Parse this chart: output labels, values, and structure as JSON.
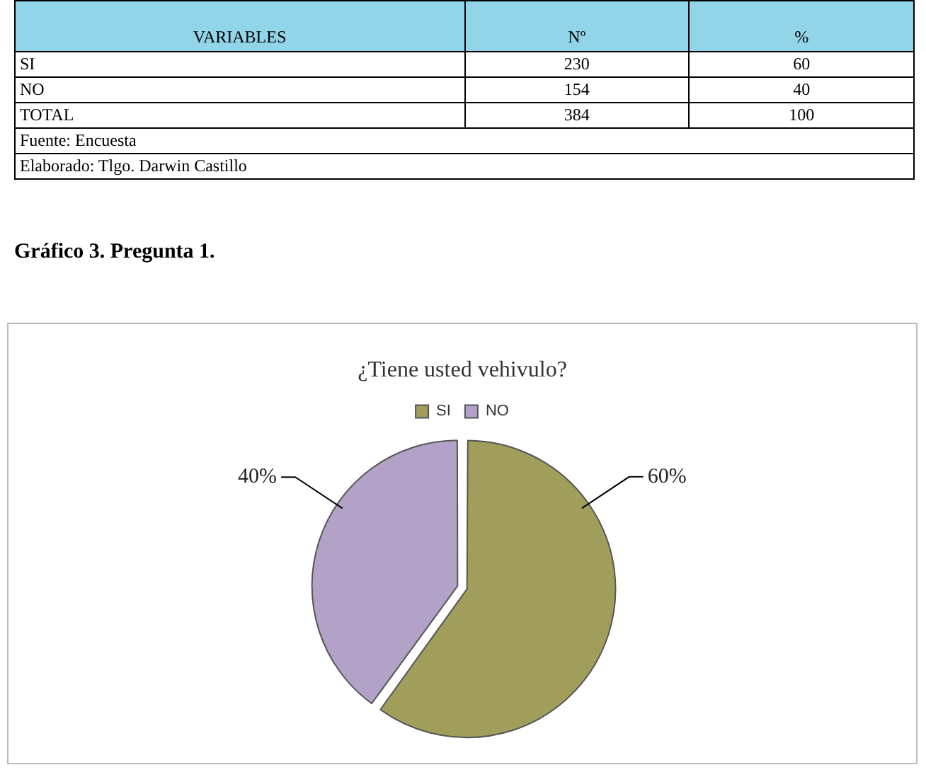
{
  "chart_data": [
    {
      "type": "other",
      "ylabel": "VARIABLES",
      "categories": [
        "SI",
        "NO",
        "TOTAL"
      ],
      "series": [
        {
          "name": "Nº",
          "values": [
            230,
            154,
            384
          ]
        },
        {
          "name": "%",
          "values": [
            60,
            40,
            100
          ]
        }
      ],
      "data_labels": true,
      "annotations": [
        "Fuente: Encuesta",
        "Elaborado: Tlgo. Darwin Castillo"
      ]
    },
    {
      "type": "pie",
      "title": "¿Tiene usted vehivulo?",
      "categories": [
        "SI",
        "NO"
      ],
      "values": [
        60,
        40
      ],
      "colors": [
        "#a19e5c",
        "#b3a2c7"
      ],
      "value_labels": [
        "60%",
        "40%"
      ],
      "legend": "top",
      "annotations": [
        "Gráfico 3. Pregunta 1."
      ]
    }
  ]
}
